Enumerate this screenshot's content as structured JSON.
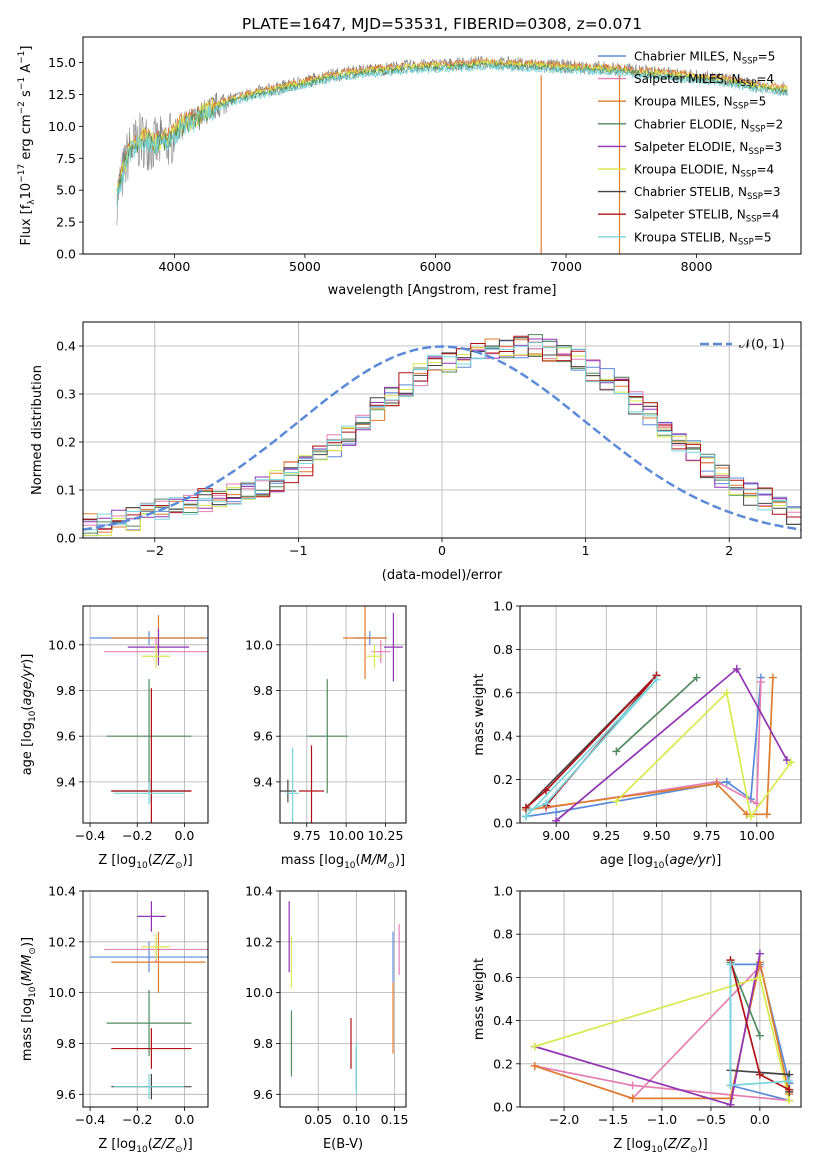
{
  "figure": {
    "title": "PLATE=1647, MJD=53531, FIBERID=0308, z=0.071"
  },
  "colors": {
    "Chabrier MILES": "#5b8bd8",
    "Salpeter MILES": "#e57fb3",
    "Kroupa MILES": "#de7b2c",
    "Chabrier ELODIE": "#4f8b5e",
    "Salpeter ELODIE": "#9033b3",
    "Kroupa ELODIE": "#d7ea4e",
    "Chabrier STELIB": "#444444",
    "Salpeter STELIB": "#b01218",
    "Kroupa STELIB": "#7ad6dc",
    "data": "#808080"
  },
  "chart_data": [
    {
      "id": "spectrum",
      "type": "line",
      "title": "PLATE=1647, MJD=53531, FIBERID=0308, z=0.071",
      "xlabel": "wavelength [Angstrom, rest frame]",
      "ylabel": "Flux [f_λ10^-17 erg cm^-2 s^-1 A^-1]",
      "xlim": [
        3300,
        8800
      ],
      "ylim": [
        0,
        17
      ],
      "xticks": [
        "4000",
        "5000",
        "6000",
        "7000",
        "8000"
      ],
      "yticks": [
        "0.0",
        "2.5",
        "5.0",
        "7.5",
        "10.0",
        "12.5",
        "15.0"
      ],
      "legend_position": "right",
      "legend": [
        {
          "model": "Chabrier MILES",
          "nssp": "5"
        },
        {
          "model": "Salpeter MILES",
          "nssp": "4"
        },
        {
          "model": "Kroupa MILES",
          "nssp": "5"
        },
        {
          "model": "Chabrier ELODIE",
          "nssp": "2"
        },
        {
          "model": "Salpeter ELODIE",
          "nssp": "3"
        },
        {
          "model": "Kroupa ELODIE",
          "nssp": "4"
        },
        {
          "model": "Chabrier STELIB",
          "nssp": "3"
        },
        {
          "model": "Salpeter STELIB",
          "nssp": "4"
        },
        {
          "model": "Kroupa STELIB",
          "nssp": "5"
        }
      ],
      "data_series": {
        "name": "data",
        "x": [
          3560,
          3650,
          3750,
          3850,
          3950,
          4050,
          4150,
          4250,
          4400,
          4600,
          4800,
          5000,
          5200,
          5400,
          5600,
          5800,
          6000,
          6200,
          6400,
          6600,
          6800,
          7000,
          7200,
          7400,
          7600,
          7800,
          8000,
          8200,
          8400,
          8700
        ],
        "y": [
          4.5,
          8.0,
          9.0,
          8.5,
          8.8,
          10.0,
          10.5,
          11.2,
          12.0,
          12.6,
          13.0,
          13.5,
          14.0,
          14.3,
          14.5,
          14.7,
          14.8,
          14.9,
          15.0,
          14.9,
          14.8,
          14.7,
          14.6,
          14.5,
          14.3,
          14.1,
          13.9,
          13.7,
          13.3,
          12.9
        ]
      },
      "model_series": {
        "name": "Kroupa STELIB",
        "x": [
          3560,
          3650,
          3750,
          3850,
          3950,
          4050,
          4150,
          4250,
          4400,
          4600,
          4800,
          5000,
          5200,
          5400,
          5600,
          5800,
          6000,
          6200,
          6400,
          6600,
          6800,
          7000,
          7200,
          7400,
          7600,
          7800,
          8000,
          8200,
          8400,
          8700
        ],
        "y": [
          4.8,
          8.3,
          9.3,
          8.8,
          9.2,
          10.2,
          10.7,
          11.4,
          12.1,
          12.7,
          13.1,
          13.6,
          14.1,
          14.4,
          14.6,
          14.8,
          14.9,
          15.0,
          15.1,
          15.0,
          14.9,
          14.8,
          14.7,
          14.6,
          14.4,
          14.2,
          14.0,
          13.8,
          13.4,
          13.0
        ]
      }
    },
    {
      "id": "residual_hist",
      "type": "line",
      "xlabel": "(data-model)/error",
      "ylabel": "Normed distribution",
      "xlim": [
        -2.5,
        2.5
      ],
      "ylim": [
        0,
        0.45
      ],
      "xticks": [
        "−2",
        "−1",
        "0",
        "1",
        "2"
      ],
      "yticks": [
        "0.0",
        "0.1",
        "0.2",
        "0.3",
        "0.4"
      ],
      "grid": true,
      "legend_position": "top-right",
      "reference_curve": {
        "name": "𝒩(0, 1)",
        "mean": 0,
        "sigma": 1
      },
      "bin_width": 0.1,
      "bin_start": -2.5,
      "histogram_values": [
        0.03,
        0.03,
        0.04,
        0.04,
        0.05,
        0.06,
        0.06,
        0.07,
        0.08,
        0.08,
        0.09,
        0.1,
        0.11,
        0.12,
        0.14,
        0.15,
        0.17,
        0.19,
        0.21,
        0.24,
        0.27,
        0.3,
        0.32,
        0.34,
        0.36,
        0.37,
        0.38,
        0.39,
        0.39,
        0.4,
        0.4,
        0.4,
        0.39,
        0.38,
        0.37,
        0.35,
        0.33,
        0.31,
        0.28,
        0.26,
        0.23,
        0.2,
        0.18,
        0.15,
        0.13,
        0.11,
        0.09,
        0.08,
        0.06,
        0.05
      ]
    },
    {
      "id": "age_vs_Z",
      "type": "scatter",
      "xlabel": "Z [log10(Z/Z⊙)]",
      "ylabel": "age  [log10(age/yr)]",
      "xlim": [
        -0.43,
        0.1
      ],
      "ylim": [
        9.22,
        10.17
      ],
      "xticks": [
        "−0.4",
        "−0.2",
        "0.0"
      ],
      "yticks": [
        "9.4",
        "9.6",
        "9.8",
        "10.0"
      ],
      "grid": true,
      "points": [
        {
          "model": "Chabrier MILES",
          "x": -0.15,
          "y": 10.03,
          "xerr": 0.25,
          "yerr": 0.03
        },
        {
          "model": "Salpeter MILES",
          "x": -0.12,
          "y": 9.97,
          "xerr": 0.22,
          "yerr": 0.06
        },
        {
          "model": "Kroupa MILES",
          "x": -0.11,
          "y": 10.03,
          "xerr": 0.2,
          "yerr": 0.1
        },
        {
          "model": "Chabrier ELODIE",
          "x": -0.15,
          "y": 9.6,
          "xerr": 0.18,
          "yerr": 0.25
        },
        {
          "model": "Salpeter ELODIE",
          "x": -0.11,
          "y": 9.99,
          "xerr": 0.13,
          "yerr": 0.08
        },
        {
          "model": "Kroupa ELODIE",
          "x": -0.12,
          "y": 9.95,
          "xerr": 0.06,
          "yerr": 0.05
        },
        {
          "model": "Chabrier STELIB",
          "x": -0.14,
          "y": 9.36,
          "xerr": 0.17,
          "yerr": 0.05
        },
        {
          "model": "Salpeter STELIB",
          "x": -0.14,
          "y": 9.36,
          "xerr": 0.17,
          "yerr": 0.45
        },
        {
          "model": "Kroupa STELIB",
          "x": -0.15,
          "y": 9.35,
          "xerr": 0.15,
          "yerr": 0.05
        }
      ]
    },
    {
      "id": "age_vs_mass",
      "type": "scatter",
      "xlabel": "mass [log10(M/M⊙)]",
      "ylabel": "",
      "xlim": [
        9.58,
        10.38
      ],
      "ylim": [
        9.22,
        10.17
      ],
      "xticks": [
        "9.75",
        "10.00",
        "10.25"
      ],
      "yticks": [
        "9.4",
        "9.6",
        "9.8",
        "10.0"
      ],
      "grid": true,
      "points": [
        {
          "model": "Chabrier MILES",
          "x": 10.15,
          "y": 10.03,
          "xerr": 0.1,
          "yerr": 0.03
        },
        {
          "model": "Salpeter MILES",
          "x": 10.22,
          "y": 9.97,
          "xerr": 0.06,
          "yerr": 0.05
        },
        {
          "model": "Kroupa MILES",
          "x": 10.12,
          "y": 10.03,
          "xerr": 0.14,
          "yerr": 0.18
        },
        {
          "model": "Chabrier ELODIE",
          "x": 9.88,
          "y": 9.6,
          "xerr": 0.13,
          "yerr": 0.25
        },
        {
          "model": "Salpeter ELODIE",
          "x": 10.3,
          "y": 9.99,
          "xerr": 0.06,
          "yerr": 0.15
        },
        {
          "model": "Kroupa ELODIE",
          "x": 10.18,
          "y": 9.95,
          "xerr": 0.05,
          "yerr": 0.05
        },
        {
          "model": "Chabrier STELIB",
          "x": 9.63,
          "y": 9.36,
          "xerr": 0.05,
          "yerr": 0.05
        },
        {
          "model": "Salpeter STELIB",
          "x": 9.78,
          "y": 9.36,
          "xerr": 0.08,
          "yerr": 0.2
        },
        {
          "model": "Kroupa STELIB",
          "x": 9.66,
          "y": 9.35,
          "xerr": 0.04,
          "yerr": 0.2
        }
      ]
    },
    {
      "id": "weight_vs_age",
      "type": "line",
      "xlabel": "age  [log10(age/yr)]",
      "ylabel": "mass weight",
      "xlim": [
        8.82,
        10.22
      ],
      "ylim": [
        0,
        1
      ],
      "xticks": [
        "9.00",
        "9.25",
        "9.50",
        "9.75",
        "10.00"
      ],
      "yticks": [
        "0.0",
        "0.2",
        "0.4",
        "0.6",
        "0.8",
        "1.0"
      ],
      "grid": true,
      "series": [
        {
          "name": "Chabrier MILES",
          "x": [
            8.85,
            9.0,
            9.85,
            9.97,
            10.02
          ],
          "y": [
            0.03,
            0.05,
            0.19,
            0.11,
            0.67
          ]
        },
        {
          "name": "Salpeter MILES",
          "x": [
            8.95,
            9.8,
            10.0,
            10.02
          ],
          "y": [
            0.07,
            0.19,
            0.09,
            0.65
          ]
        },
        {
          "name": "Kroupa MILES",
          "x": [
            8.85,
            9.8,
            9.95,
            10.05,
            10.08
          ],
          "y": [
            0.06,
            0.18,
            0.04,
            0.04,
            0.67
          ]
        },
        {
          "name": "Chabrier ELODIE",
          "x": [
            9.3,
            9.7
          ],
          "y": [
            0.33,
            0.67
          ]
        },
        {
          "name": "Salpeter ELODIE",
          "x": [
            9.0,
            9.9,
            10.15
          ],
          "y": [
            0.01,
            0.71,
            0.29
          ]
        },
        {
          "name": "Kroupa ELODIE",
          "x": [
            9.3,
            9.85,
            9.97,
            10.17
          ],
          "y": [
            0.1,
            0.6,
            0.03,
            0.28
          ]
        },
        {
          "name": "Chabrier STELIB",
          "x": [
            8.85,
            9.5
          ],
          "y": [
            0.07,
            0.68
          ]
        },
        {
          "name": "Salpeter STELIB",
          "x": [
            8.85,
            8.95,
            9.5,
            8.95
          ],
          "y": [
            0.07,
            0.15,
            0.68,
            0.08
          ]
        },
        {
          "name": "Kroupa STELIB",
          "x": [
            8.87,
            8.95,
            9.5,
            8.85
          ],
          "y": [
            0.06,
            0.09,
            0.66,
            0.03
          ]
        }
      ]
    },
    {
      "id": "mass_vs_Z",
      "type": "scatter",
      "xlabel": "Z [log10(Z/Z⊙)]",
      "ylabel": "mass [log10(M/M⊙)]",
      "xlim": [
        -0.43,
        0.1
      ],
      "ylim": [
        9.55,
        10.4
      ],
      "xticks": [
        "−0.4",
        "−0.2",
        "0.0"
      ],
      "yticks": [
        "9.6",
        "9.8",
        "10.0",
        "10.2",
        "10.4"
      ],
      "grid": true,
      "points": [
        {
          "model": "Chabrier MILES",
          "x": -0.15,
          "y": 10.14,
          "xerr": 0.25,
          "yerr": 0.06
        },
        {
          "model": "Salpeter MILES",
          "x": -0.12,
          "y": 10.17,
          "xerr": 0.22,
          "yerr": 0.05
        },
        {
          "model": "Kroupa MILES",
          "x": -0.11,
          "y": 10.12,
          "xerr": 0.2,
          "yerr": 0.12
        },
        {
          "model": "Chabrier ELODIE",
          "x": -0.15,
          "y": 9.88,
          "xerr": 0.18,
          "yerr": 0.13
        },
        {
          "model": "Salpeter ELODIE",
          "x": -0.14,
          "y": 10.3,
          "xerr": 0.06,
          "yerr": 0.06
        },
        {
          "model": "Kroupa ELODIE",
          "x": -0.12,
          "y": 10.18,
          "xerr": 0.06,
          "yerr": 0.05
        },
        {
          "model": "Chabrier STELIB",
          "x": -0.14,
          "y": 9.63,
          "xerr": 0.17,
          "yerr": 0.05
        },
        {
          "model": "Salpeter STELIB",
          "x": -0.14,
          "y": 9.78,
          "xerr": 0.17,
          "yerr": 0.08
        },
        {
          "model": "Kroupa STELIB",
          "x": -0.15,
          "y": 9.63,
          "xerr": 0.15,
          "yerr": 0.05
        }
      ]
    },
    {
      "id": "mass_vs_EBV",
      "type": "scatter",
      "xlabel": "E(B-V)",
      "ylabel": "",
      "xlim": [
        0.0,
        0.165
      ],
      "ylim": [
        9.55,
        10.4
      ],
      "xticks": [
        "0.05",
        "0.10",
        "0.15"
      ],
      "yticks": [
        "9.6",
        "9.8",
        "10.0",
        "10.2",
        "10.4"
      ],
      "grid": true,
      "points": [
        {
          "model": "Chabrier MILES",
          "x": 0.148,
          "y": 10.14,
          "xerr": 0,
          "yerr": 0.1
        },
        {
          "model": "Salpeter MILES",
          "x": 0.156,
          "y": 10.17,
          "xerr": 0,
          "yerr": 0.1
        },
        {
          "model": "Kroupa MILES",
          "x": 0.148,
          "y": 9.9,
          "xerr": 0,
          "yerr": 0.14
        },
        {
          "model": "Chabrier ELODIE",
          "x": 0.015,
          "y": 9.8,
          "xerr": 0,
          "yerr": 0.13
        },
        {
          "model": "Salpeter ELODIE",
          "x": 0.012,
          "y": 10.22,
          "xerr": 0,
          "yerr": 0.14
        },
        {
          "model": "Kroupa ELODIE",
          "x": 0.015,
          "y": 10.12,
          "xerr": 0,
          "yerr": 0.1
        },
        {
          "model": "Chabrier STELIB",
          "x": 0.1,
          "y": 9.7,
          "xerr": 0,
          "yerr": 0.08
        },
        {
          "model": "Salpeter STELIB",
          "x": 0.093,
          "y": 9.8,
          "xerr": 0,
          "yerr": 0.1
        },
        {
          "model": "Kroupa STELIB",
          "x": 0.1,
          "y": 9.7,
          "xerr": 0,
          "yerr": 0.1
        }
      ]
    },
    {
      "id": "weight_vs_Z",
      "type": "line",
      "xlabel": "Z [log10(Z/Z⊙)]",
      "ylabel": "mass weight",
      "xlim": [
        -2.45,
        0.42
      ],
      "ylim": [
        0,
        1
      ],
      "xticks": [
        "−2.0",
        "−1.5",
        "−1.0",
        "−0.5",
        "0.0"
      ],
      "yticks": [
        "0.0",
        "0.2",
        "0.4",
        "0.6",
        "0.8",
        "1.0"
      ],
      "grid": true,
      "series": [
        {
          "name": "Chabrier MILES",
          "x": [
            0.3,
            -0.3,
            -0.3,
            0.0,
            0.3
          ],
          "y": [
            0.03,
            0.1,
            0.66,
            0.66,
            0.11
          ]
        },
        {
          "name": "Salpeter MILES",
          "x": [
            0.3,
            -1.3,
            -2.3,
            -1.3,
            0.0
          ],
          "y": [
            0.03,
            0.1,
            0.19,
            0.04,
            0.65
          ]
        },
        {
          "name": "Kroupa MILES",
          "x": [
            -2.3,
            -1.3,
            -0.3,
            0.0,
            0.3
          ],
          "y": [
            0.19,
            0.04,
            0.04,
            0.67,
            0.06
          ]
        },
        {
          "name": "Chabrier ELODIE",
          "x": [
            -0.3,
            0.0
          ],
          "y": [
            0.67,
            0.33
          ]
        },
        {
          "name": "Salpeter ELODIE",
          "x": [
            -2.3,
            -0.3,
            0.0
          ],
          "y": [
            0.28,
            0.01,
            0.71
          ]
        },
        {
          "name": "Kroupa ELODIE",
          "x": [
            -2.3,
            0.0,
            0.3
          ],
          "y": [
            0.28,
            0.6,
            0.03
          ]
        },
        {
          "name": "Chabrier STELIB",
          "x": [
            -0.3,
            0.3,
            0.3
          ],
          "y": [
            0.17,
            0.15,
            0.07
          ]
        },
        {
          "name": "Salpeter STELIB",
          "x": [
            -0.3,
            0.0,
            0.3
          ],
          "y": [
            0.68,
            0.15,
            0.08
          ]
        },
        {
          "name": "Kroupa STELIB",
          "x": [
            -0.3,
            -0.3,
            0.3
          ],
          "y": [
            0.66,
            0.1,
            0.12
          ]
        }
      ]
    }
  ]
}
